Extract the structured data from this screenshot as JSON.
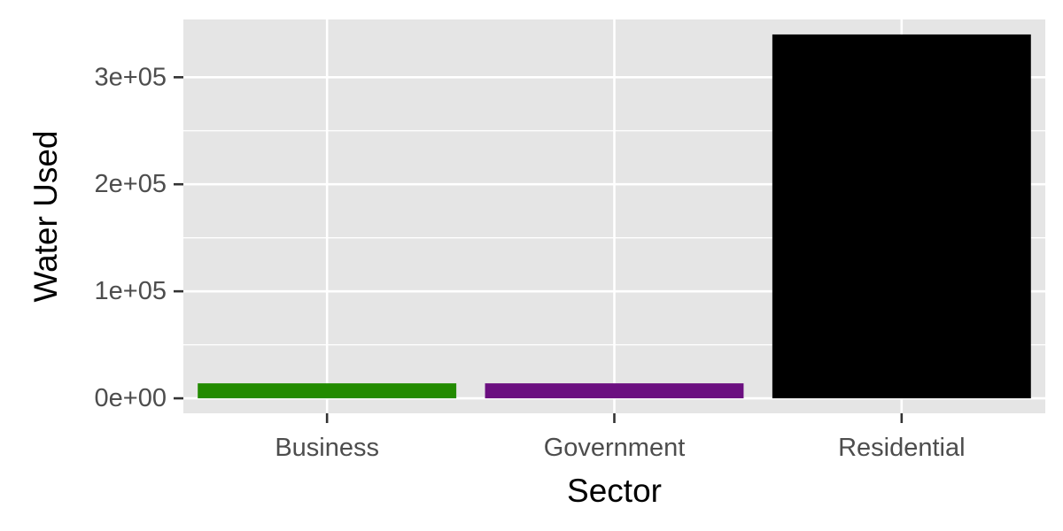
{
  "chart_data": {
    "type": "bar",
    "xlabel": "Sector",
    "ylabel": "Water Used",
    "categories": [
      "Business",
      "Government",
      "Residential"
    ],
    "values": [
      14000,
      14000,
      340000
    ],
    "colors": [
      "#228B00",
      "#6B0F80",
      "#000000"
    ],
    "ylim": [
      -14000,
      354000
    ],
    "yticks": [
      0,
      100000,
      200000,
      300000
    ],
    "ytick_labels": [
      "0e+00",
      "1e+05",
      "2e+05",
      "3e+05"
    ],
    "y_minor_ticks": [
      50000,
      150000,
      250000
    ],
    "grid": true,
    "panel_background": "#e5e5e5",
    "grid_color": "#ffffff"
  }
}
